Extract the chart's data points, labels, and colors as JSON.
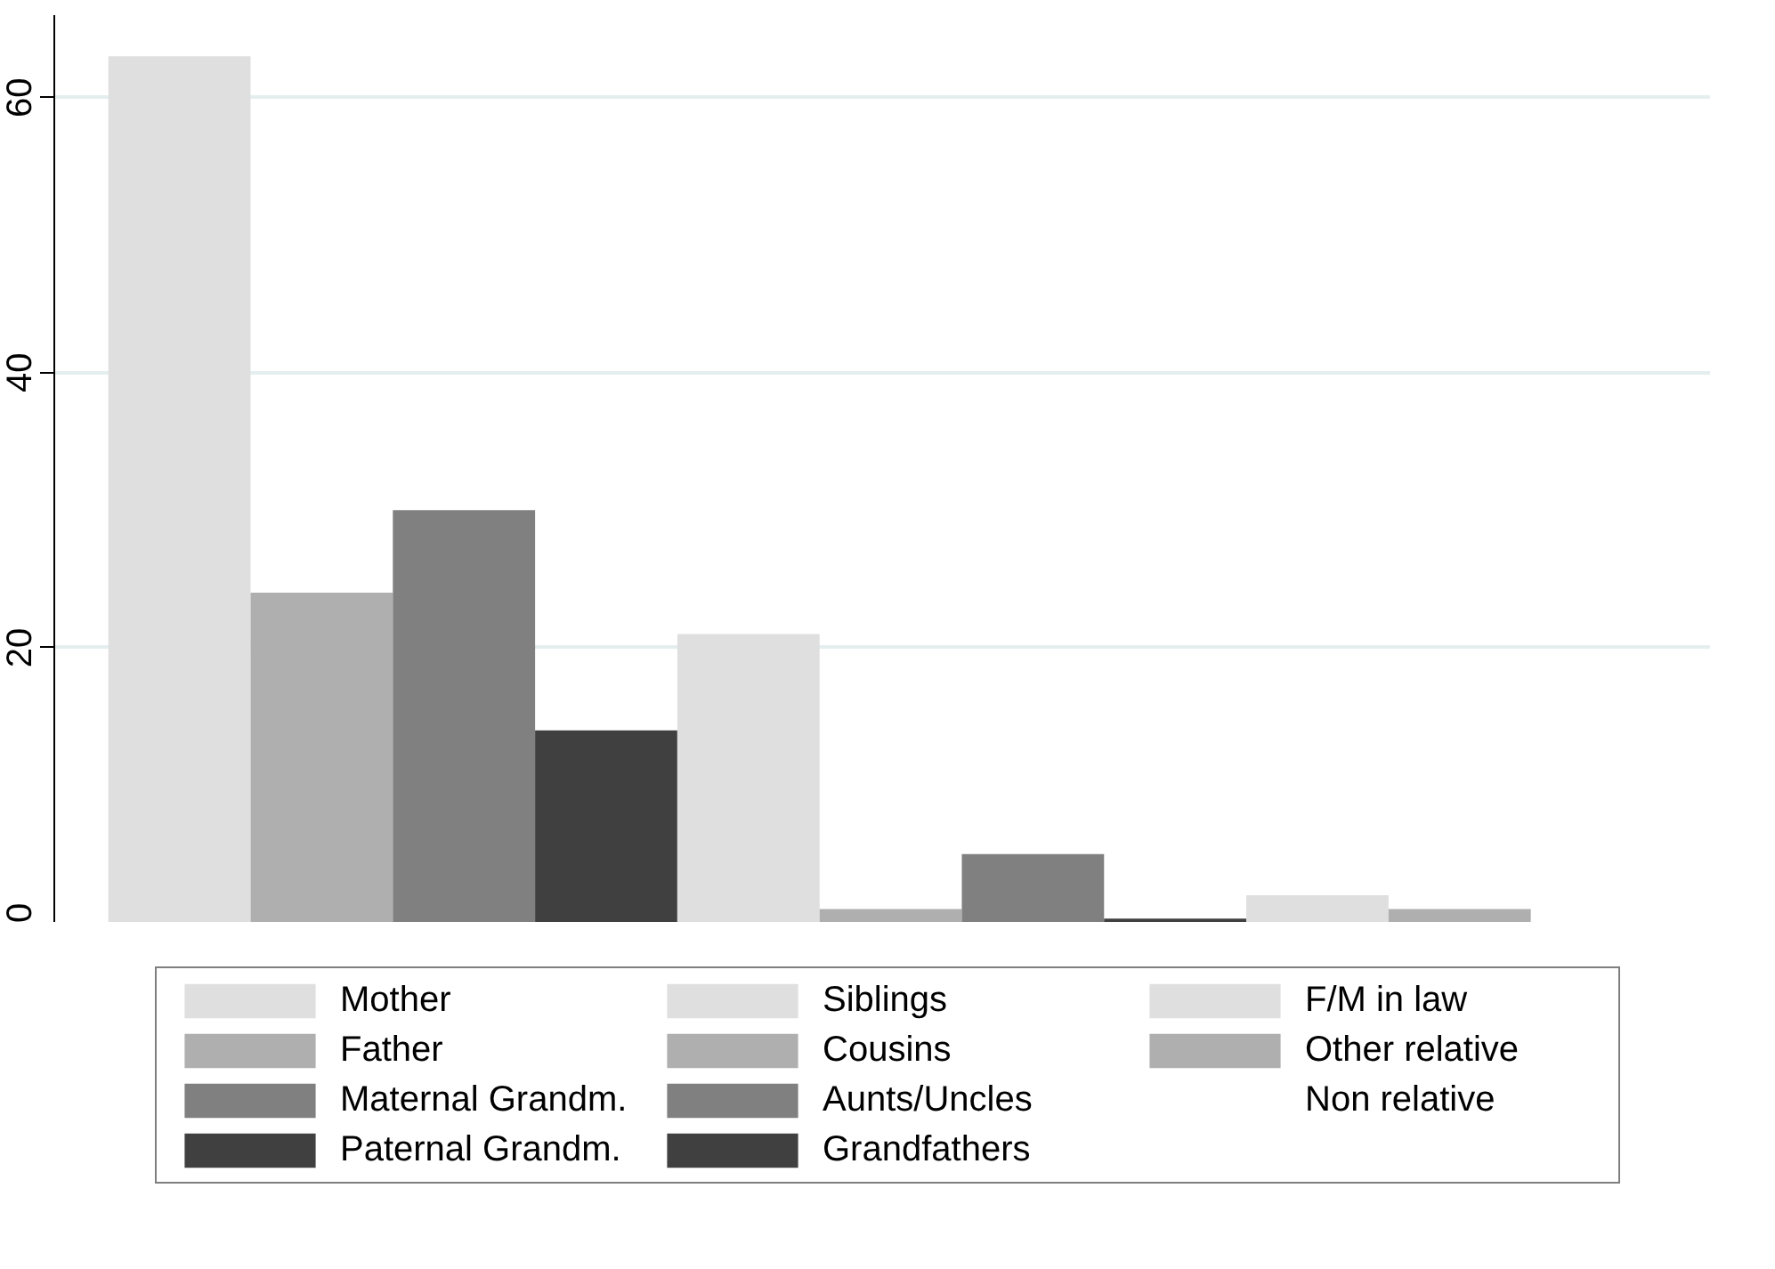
{
  "chart_data": {
    "type": "bar",
    "categories": [
      null
    ],
    "ylim": [
      0,
      66
    ],
    "yticks": [
      0,
      20,
      40,
      60
    ],
    "grid": "y",
    "legend": "bottom",
    "series": [
      {
        "name": "Mother",
        "color": "#dfdfdf",
        "values": [
          63
        ]
      },
      {
        "name": "Father",
        "color": "#afafaf",
        "values": [
          24
        ]
      },
      {
        "name": "Maternal Grandm.",
        "color": "#808080",
        "values": [
          30
        ]
      },
      {
        "name": "Paternal Grandm.",
        "color": "#404040",
        "values": [
          14
        ]
      },
      {
        "name": "Siblings",
        "color": "#dfdfdf",
        "values": [
          21
        ]
      },
      {
        "name": "Cousins",
        "color": "#afafaf",
        "values": [
          1
        ]
      },
      {
        "name": "Aunts/Uncles",
        "color": "#808080",
        "values": [
          5
        ]
      },
      {
        "name": "Grandfathers",
        "color": "#404040",
        "values": [
          0.3
        ]
      },
      {
        "name": "F/M in law",
        "color": "#dfdfdf",
        "values": [
          2
        ]
      },
      {
        "name": "Other relative",
        "color": "#afafaf",
        "values": [
          1
        ]
      },
      {
        "name": "Non relative",
        "values": [
          null
        ]
      }
    ]
  }
}
